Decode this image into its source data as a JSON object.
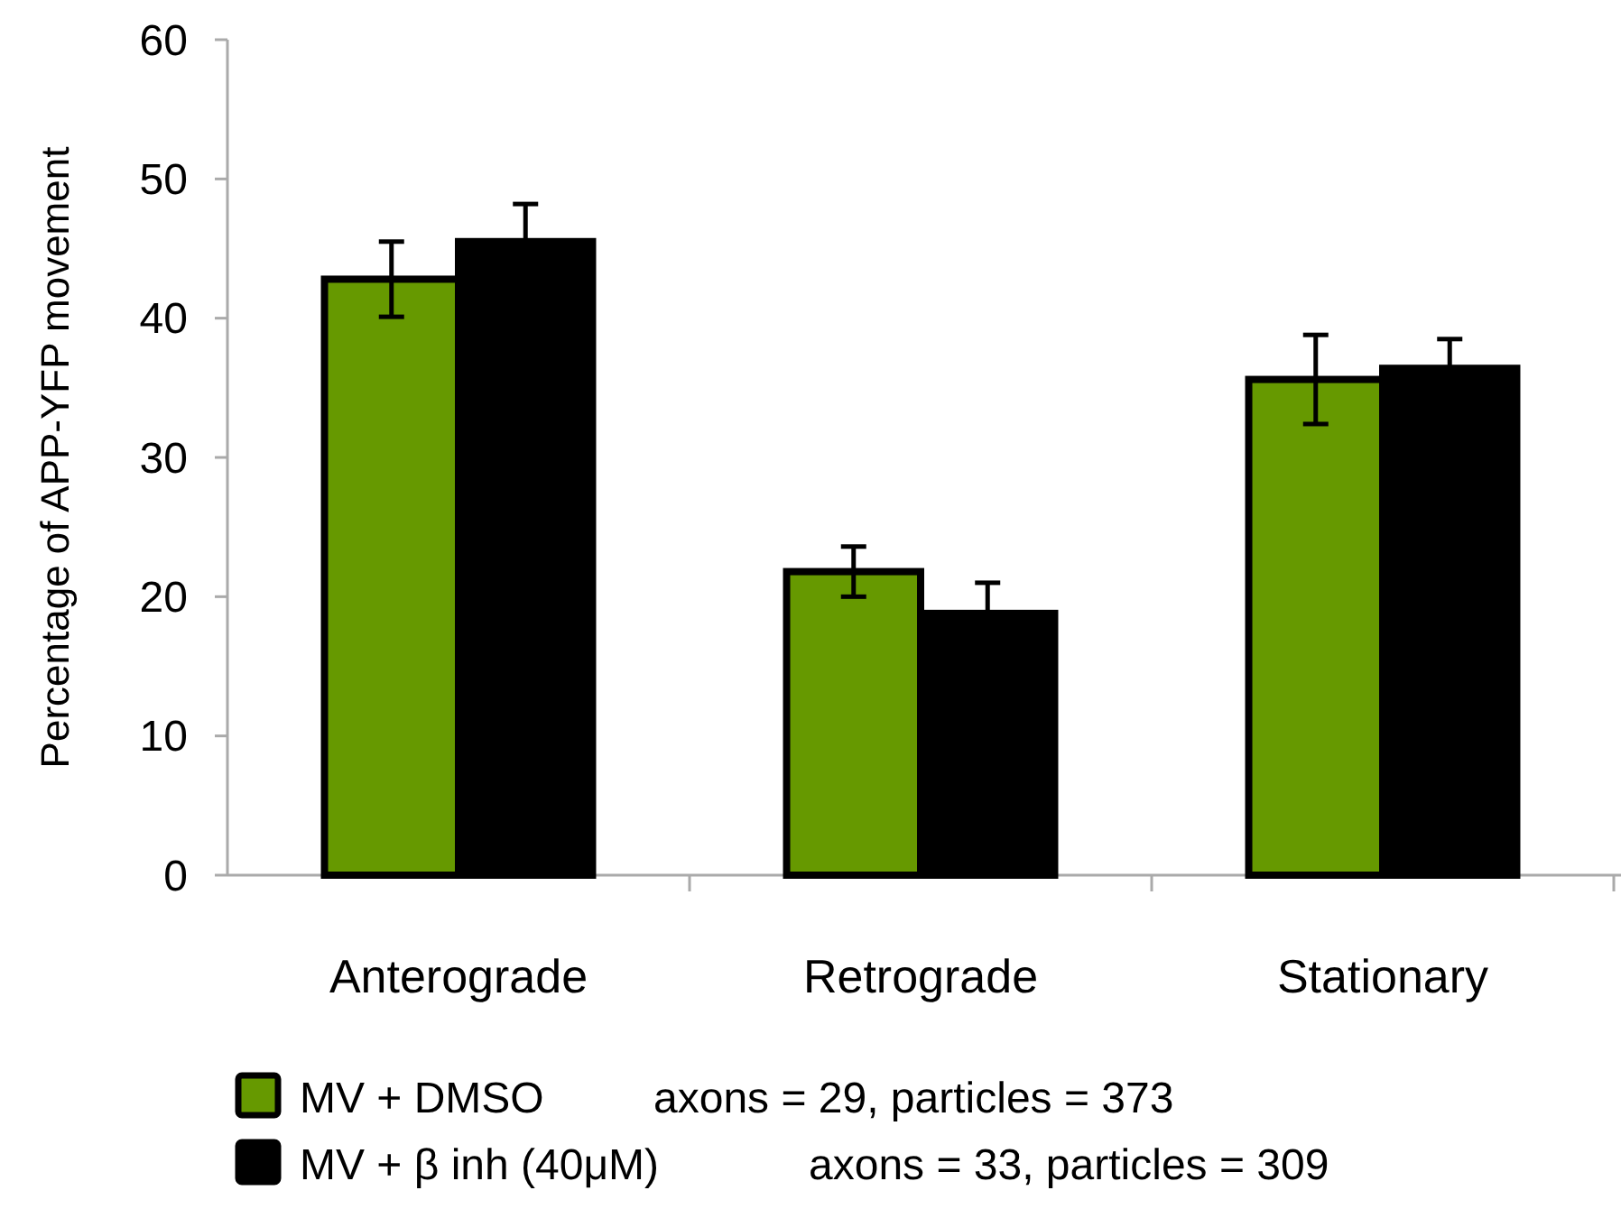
{
  "chart_data": {
    "type": "bar",
    "ylabel": "Percentage of APP-YFP movement",
    "categories": [
      "Anterograde",
      "Retrograde",
      "Stationary"
    ],
    "series": [
      {
        "name": "MV + DMSO",
        "color": "#669900",
        "values": [
          42.8,
          21.8,
          35.6
        ],
        "errors": [
          2.7,
          1.8,
          3.2
        ]
      },
      {
        "name": "MV + β inh (40μM)",
        "color": "#000000",
        "values": [
          45.5,
          18.8,
          36.4
        ],
        "errors": [
          2.7,
          2.2,
          2.1
        ]
      }
    ],
    "annotations": [
      "axons = 29, particles = 373",
      "axons = 33, particles = 309"
    ],
    "ylim": [
      0,
      60
    ],
    "yticks": [
      0,
      10,
      20,
      30,
      40,
      50,
      60
    ],
    "grid": false,
    "legend": "bottom"
  }
}
